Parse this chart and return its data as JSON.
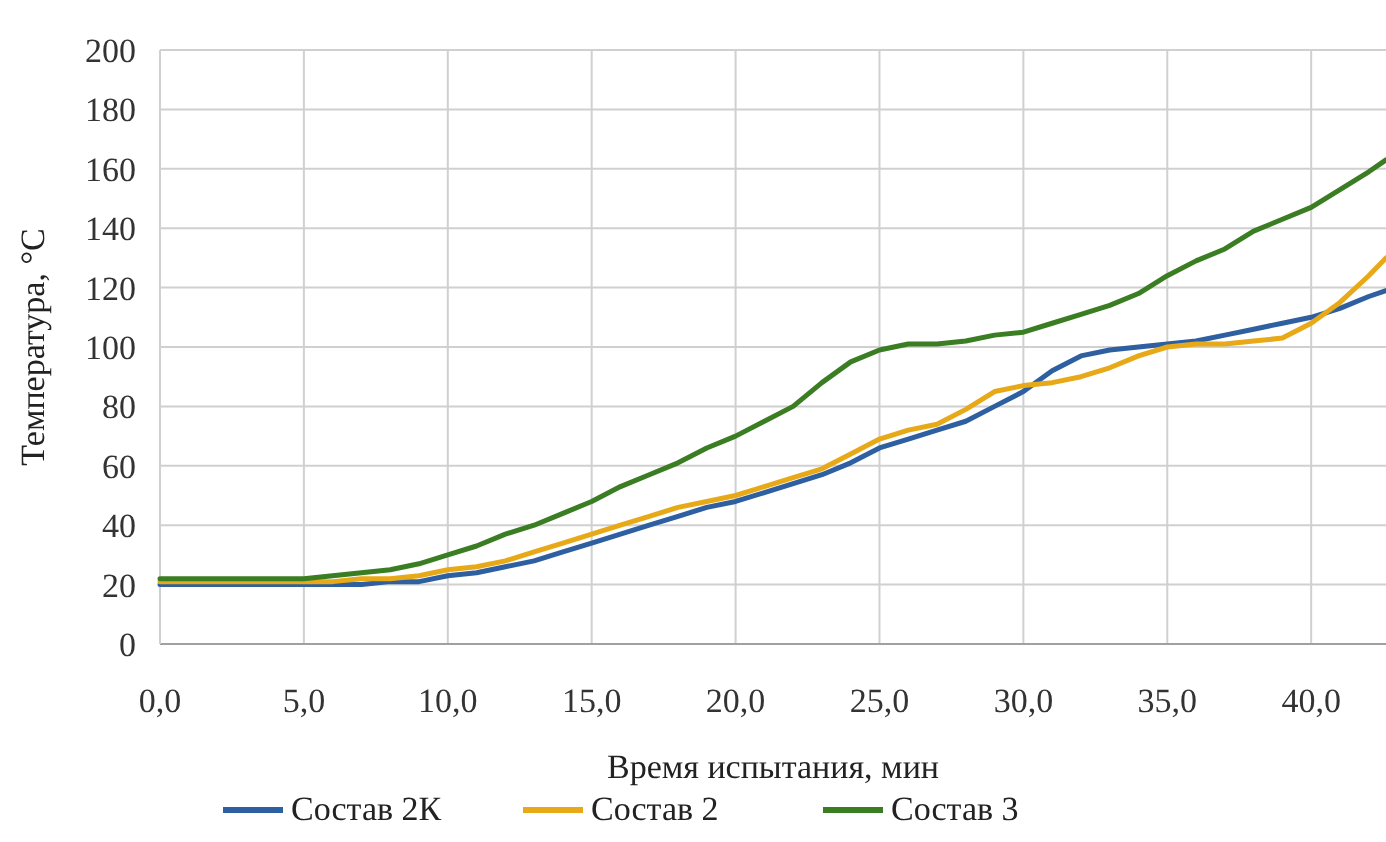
{
  "chart_data": {
    "type": "line",
    "xlabel": "Время испытания, мин",
    "ylabel": "Температура, °С",
    "xlim": [
      0,
      42.6
    ],
    "xticks": [
      {
        "value": 0,
        "label": "0,0"
      },
      {
        "value": 5,
        "label": "5,0"
      },
      {
        "value": 10,
        "label": "10,0"
      },
      {
        "value": 15,
        "label": "15,0"
      },
      {
        "value": 20,
        "label": "20,0"
      },
      {
        "value": 25,
        "label": "25,0"
      },
      {
        "value": 30,
        "label": "30,0"
      },
      {
        "value": 35,
        "label": "35,0"
      },
      {
        "value": 40,
        "label": "40,0"
      }
    ],
    "ylim": [
      0,
      200
    ],
    "yticks": [
      0,
      20,
      40,
      60,
      80,
      100,
      120,
      140,
      160,
      180,
      200
    ],
    "grid": true,
    "legend": "bottom",
    "marker": "none",
    "line_style": "solid",
    "x": [
      0,
      1,
      2,
      3,
      4,
      5,
      6,
      7,
      8,
      9,
      10,
      11,
      12,
      13,
      14,
      15,
      16,
      17,
      18,
      19,
      20,
      21,
      22,
      23,
      24,
      25,
      26,
      27,
      28,
      29,
      30,
      31,
      32,
      33,
      34,
      35,
      36,
      37,
      38,
      39,
      40,
      41,
      42,
      42.6
    ],
    "series": [
      {
        "name": "Состав 2К",
        "color": "#2e5fa0",
        "values": [
          20,
          20,
          20,
          20,
          20,
          20,
          20,
          20,
          21,
          21,
          23,
          24,
          26,
          28,
          31,
          34,
          37,
          40,
          43,
          46,
          48,
          51,
          54,
          57,
          61,
          66,
          69,
          72,
          75,
          80,
          85,
          92,
          97,
          99,
          100,
          101,
          102,
          104,
          106,
          108,
          110,
          113,
          117,
          119
        ]
      },
      {
        "name": "Состав 2",
        "color": "#e8a918",
        "values": [
          21,
          21,
          21,
          21,
          21,
          21,
          21,
          22,
          22,
          23,
          25,
          26,
          28,
          31,
          34,
          37,
          40,
          43,
          46,
          48,
          50,
          53,
          56,
          59,
          64,
          69,
          72,
          74,
          79,
          85,
          87,
          88,
          90,
          93,
          97,
          100,
          101,
          101,
          102,
          103,
          108,
          115,
          124,
          130
        ]
      },
      {
        "name": "Состав 3",
        "color": "#3a7d22",
        "values": [
          22,
          22,
          22,
          22,
          22,
          22,
          23,
          24,
          25,
          27,
          30,
          33,
          37,
          40,
          44,
          48,
          53,
          57,
          61,
          66,
          70,
          75,
          80,
          88,
          95,
          99,
          101,
          101,
          102,
          104,
          105,
          108,
          111,
          114,
          118,
          124,
          129,
          133,
          139,
          143,
          147,
          153,
          159,
          163
        ]
      }
    ]
  }
}
